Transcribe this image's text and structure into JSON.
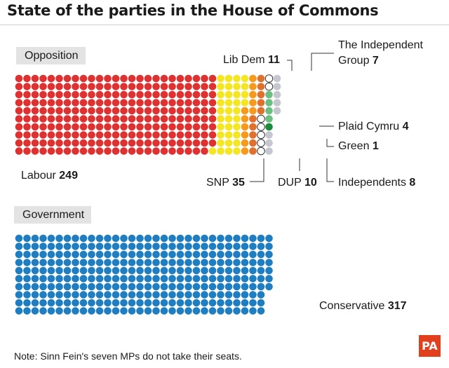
{
  "title": "State of the parties in the House of Commons",
  "footnote": "Note: Sinn Fein's seven MPs do not take their seats.",
  "logo_text": "PA",
  "colors": {
    "Labour": "#e03131",
    "SNP": "#f5e623",
    "Lib Dem": "#f59a1f",
    "DUP": "#e0702e",
    "The Independent Group": "#ffffff",
    "Plaid Cymru": "#6cbf83",
    "Green": "#1b8a3a",
    "Independents": "#c6c6d0",
    "Conservative": "#1f7ec1"
  },
  "chart_data": {
    "type": "waffle",
    "title": "State of the parties in the House of Commons",
    "groups": [
      {
        "label": "Opposition",
        "parties": [
          {
            "name": "Labour",
            "seats": 249
          },
          {
            "name": "SNP",
            "seats": 35
          },
          {
            "name": "Lib Dem",
            "seats": 11
          },
          {
            "name": "DUP",
            "seats": 10
          },
          {
            "name": "The Independent Group",
            "seats": 7
          },
          {
            "name": "Plaid Cymru",
            "seats": 4
          },
          {
            "name": "Green",
            "seats": 1
          },
          {
            "name": "Independents",
            "seats": 8
          }
        ]
      },
      {
        "label": "Government",
        "parties": [
          {
            "name": "Conservative",
            "seats": 317
          }
        ]
      }
    ],
    "annotations": [
      {
        "party": "Labour",
        "text": "Labour",
        "value": "249"
      },
      {
        "party": "SNP",
        "text": "SNP",
        "value": "35"
      },
      {
        "party": "Lib Dem",
        "text": "Lib Dem",
        "value": "11"
      },
      {
        "party": "DUP",
        "text": "DUP",
        "value": "10"
      },
      {
        "party": "The Independent Group",
        "text": "The Independent",
        "text2": "Group",
        "value": "7"
      },
      {
        "party": "Plaid Cymru",
        "text": "Plaid Cymru",
        "value": "4"
      },
      {
        "party": "Green",
        "text": "Green",
        "value": "1"
      },
      {
        "party": "Independents",
        "text": "Independents",
        "value": "8"
      },
      {
        "party": "Conservative",
        "text": "Conservative",
        "value": "317"
      }
    ]
  }
}
